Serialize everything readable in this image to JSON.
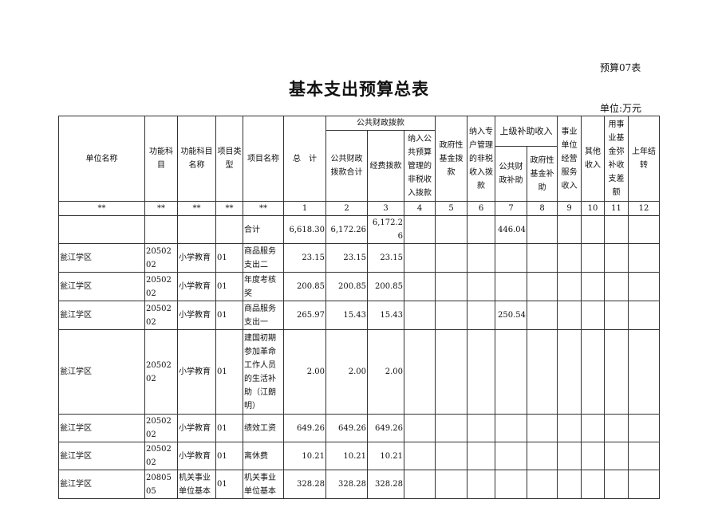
{
  "form_no": "预算07表",
  "title": "基本支出预算总表",
  "unit": "单位:万元",
  "headers": {
    "unit_name": "单位名称",
    "func_code": "功能科目",
    "func_name": "功能科目名称",
    "proj_type": "项目类型",
    "proj_name": "项目名称",
    "total": "总　计",
    "public_finance": "公共财政拨款",
    "pf_total": "公共财政拨款合计",
    "pf_funds": "经费拨款",
    "pf_nontax": "纳入公共预算管理的非税收入拨款",
    "gov_fund": "政府性基金拨款",
    "special_nontax": "纳入专户管理的非税收入拨款",
    "superior": "上级补助收入",
    "sup_public": "公共财政补助",
    "sup_gov": "政府性基金补助",
    "business": "事业单位经营服务收入",
    "other": "其他收入",
    "reserve": "用事业基金弥补收支差额",
    "carryover": "上年结转"
  },
  "index_row": [
    "**",
    "**",
    "**",
    "**",
    "**",
    "1",
    "2",
    "3",
    "4",
    "5",
    "6",
    "7",
    "8",
    "9",
    "10",
    "11",
    "12"
  ],
  "rows": [
    [
      "",
      "",
      "",
      "",
      "合计",
      "6,618.30",
      "6,172.26",
      "6,172.26",
      "",
      "",
      "",
      "446.04",
      "",
      "",
      "",
      "",
      ""
    ],
    [
      "瓮江学区",
      "2050202",
      "小学教育",
      "01",
      "商品服务支出二",
      "23.15",
      "23.15",
      "23.15",
      "",
      "",
      "",
      "",
      "",
      "",
      "",
      "",
      ""
    ],
    [
      "瓮江学区",
      "2050202",
      "小学教育",
      "01",
      "年度考核奖",
      "200.85",
      "200.85",
      "200.85",
      "",
      "",
      "",
      "",
      "",
      "",
      "",
      "",
      ""
    ],
    [
      "瓮江学区",
      "2050202",
      "小学教育",
      "01",
      "商品服务支出一",
      "265.97",
      "15.43",
      "15.43",
      "",
      "",
      "",
      "250.54",
      "",
      "",
      "",
      "",
      ""
    ],
    [
      "瓮江学区",
      "2050202",
      "小学教育",
      "01",
      "建国初期参加革命工作人员的生活补助（江朗明）",
      "2.00",
      "2.00",
      "2.00",
      "",
      "",
      "",
      "",
      "",
      "",
      "",
      "",
      ""
    ],
    [
      "瓮江学区",
      "2050202",
      "小学教育",
      "01",
      "绩效工资",
      "649.26",
      "649.26",
      "649.26",
      "",
      "",
      "",
      "",
      "",
      "",
      "",
      "",
      ""
    ],
    [
      "瓮江学区",
      "2050202",
      "小学教育",
      "01",
      "离休费",
      "10.21",
      "10.21",
      "10.21",
      "",
      "",
      "",
      "",
      "",
      "",
      "",
      "",
      ""
    ],
    [
      "瓮江学区",
      "2080505",
      "机关事业单位基本",
      "01",
      "机关事业单位基本",
      "328.28",
      "328.28",
      "328.28",
      "",
      "",
      "",
      "",
      "",
      "",
      "",
      "",
      ""
    ]
  ]
}
